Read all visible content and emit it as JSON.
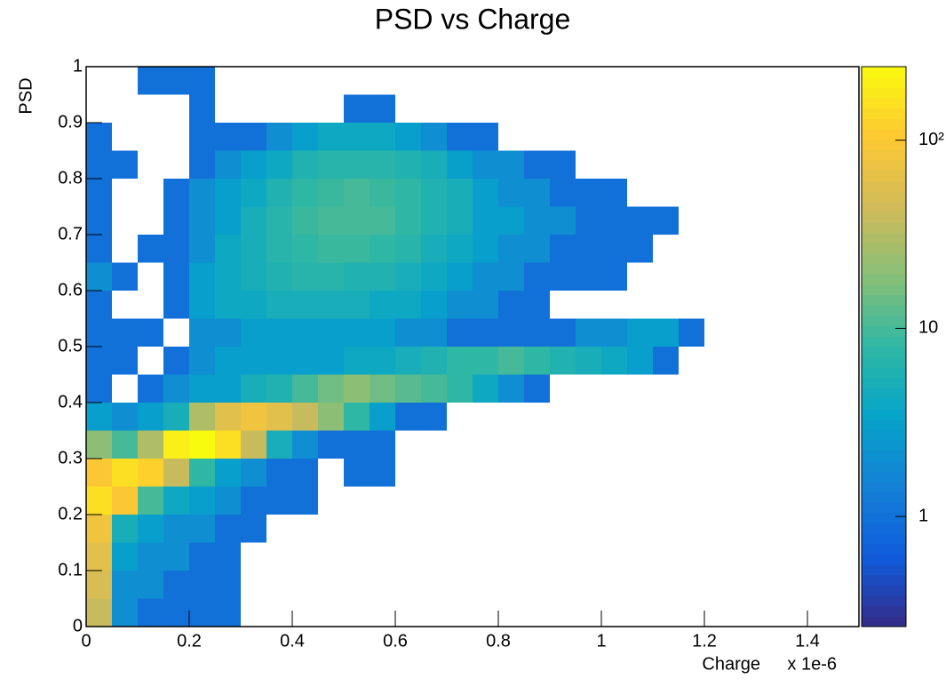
{
  "chart_data": {
    "type": "heatmap",
    "title": "PSD vs Charge",
    "x_label": "Charge",
    "x_multiplier": "x 1e-6",
    "y_label": "PSD",
    "xlim": [
      0,
      1.5
    ],
    "ylim": [
      0,
      1
    ],
    "xticks": [
      0,
      0.2,
      0.4,
      0.6,
      0.8,
      1,
      1.2,
      1.4
    ],
    "yticks": [
      0,
      0.1,
      0.2,
      0.3,
      0.4,
      0.5,
      0.6,
      0.7,
      0.8,
      0.9,
      1
    ],
    "zlim": [
      0.26,
      246
    ],
    "zlog": true,
    "zticks": [
      1,
      10,
      {
        "value": 100,
        "label": "10²"
      }
    ],
    "palette": [
      "#352a87",
      "#0f5cdd",
      "#1481d6",
      "#06a4ca",
      "#2eb7a4",
      "#87bf77",
      "#d1bb59",
      "#fec832",
      "#f9fb0e"
    ],
    "x_bins": [
      0,
      0.05,
      0.1,
      0.15,
      0.2,
      0.25,
      0.3,
      0.35,
      0.4,
      0.45,
      0.5,
      0.55,
      0.6,
      0.65,
      0.7,
      0.75,
      0.8,
      0.85,
      0.9,
      0.95,
      1,
      1.05,
      1.1,
      1.15,
      1.2,
      1.25,
      1.3,
      1.35,
      1.4,
      1.45,
      1.5
    ],
    "y_bins": [
      0,
      0.05,
      0.1,
      0.15,
      0.2,
      0.25,
      0.3,
      0.35,
      0.4,
      0.45,
      0.5,
      0.55,
      0.6,
      0.65,
      0.7,
      0.75,
      0.8,
      0.85,
      0.9,
      0.95,
      1
    ],
    "z": [
      [
        40,
        2,
        1,
        1,
        1,
        1,
        0,
        0,
        0,
        0,
        0,
        0,
        0,
        0,
        0,
        0,
        0,
        0,
        0,
        0,
        0,
        0,
        0,
        0,
        0,
        0,
        0,
        0,
        0,
        0
      ],
      [
        50,
        2,
        2,
        1,
        1,
        1,
        0,
        0,
        0,
        0,
        0,
        0,
        0,
        0,
        0,
        0,
        0,
        0,
        0,
        0,
        0,
        0,
        0,
        0,
        0,
        0,
        0,
        0,
        0,
        0
      ],
      [
        60,
        3,
        2,
        2,
        1,
        1,
        0,
        0,
        0,
        0,
        0,
        0,
        0,
        0,
        0,
        0,
        0,
        0,
        0,
        0,
        0,
        0,
        0,
        0,
        0,
        0,
        0,
        0,
        0,
        0
      ],
      [
        80,
        5,
        3,
        2,
        2,
        1,
        1,
        0,
        0,
        0,
        0,
        0,
        0,
        0,
        0,
        0,
        0,
        0,
        0,
        0,
        0,
        0,
        0,
        0,
        0,
        0,
        0,
        0,
        0,
        0
      ],
      [
        150,
        100,
        10,
        4,
        3,
        2,
        1,
        1,
        1,
        0,
        0,
        0,
        0,
        0,
        0,
        0,
        0,
        0,
        0,
        0,
        0,
        0,
        0,
        0,
        0,
        0,
        0,
        0,
        0,
        0
      ],
      [
        100,
        150,
        120,
        40,
        8,
        3,
        2,
        1,
        1,
        0,
        1,
        1,
        0,
        0,
        0,
        0,
        0,
        0,
        0,
        0,
        0,
        0,
        0,
        0,
        0,
        0,
        0,
        0,
        0,
        0
      ],
      [
        20,
        10,
        30,
        200,
        246,
        150,
        40,
        5,
        2,
        1,
        1,
        1,
        0,
        0,
        0,
        0,
        0,
        0,
        0,
        0,
        0,
        0,
        0,
        0,
        0,
        0,
        0,
        0,
        0,
        0
      ],
      [
        3,
        2,
        3,
        5,
        30,
        60,
        80,
        60,
        40,
        20,
        8,
        3,
        1,
        1,
        0,
        0,
        0,
        0,
        0,
        0,
        0,
        0,
        0,
        0,
        0,
        0,
        0,
        0,
        0,
        0
      ],
      [
        1,
        0,
        1,
        2,
        3,
        3,
        5,
        6,
        10,
        15,
        20,
        15,
        12,
        10,
        8,
        4,
        2,
        1,
        0,
        0,
        0,
        0,
        0,
        0,
        0,
        0,
        0,
        0,
        0,
        0
      ],
      [
        1,
        1,
        0,
        1,
        2,
        3,
        3,
        3,
        3,
        3,
        4,
        4,
        5,
        6,
        8,
        8,
        10,
        8,
        6,
        5,
        4,
        3,
        1,
        0,
        0,
        0,
        0,
        0,
        0,
        0
      ],
      [
        1,
        1,
        1,
        0,
        2,
        2,
        3,
        3,
        3,
        3,
        3,
        3,
        2,
        2,
        1,
        1,
        1,
        1,
        1,
        2,
        2,
        3,
        3,
        1,
        0,
        0,
        0,
        0,
        0,
        0
      ],
      [
        1,
        0,
        0,
        1,
        3,
        4,
        4,
        5,
        5,
        5,
        5,
        4,
        4,
        3,
        2,
        2,
        1,
        1,
        0,
        0,
        0,
        0,
        0,
        0,
        0,
        0,
        0,
        0,
        0,
        0
      ],
      [
        2,
        1,
        0,
        1,
        3,
        4,
        5,
        6,
        7,
        7,
        6,
        6,
        5,
        4,
        3,
        2,
        2,
        1,
        1,
        1,
        1,
        0,
        0,
        0,
        0,
        0,
        0,
        0,
        0,
        0
      ],
      [
        1,
        0,
        1,
        1,
        2,
        4,
        5,
        7,
        8,
        9,
        9,
        8,
        7,
        5,
        4,
        3,
        2,
        2,
        1,
        1,
        1,
        1,
        0,
        0,
        0,
        0,
        0,
        0,
        0,
        0
      ],
      [
        1,
        0,
        0,
        1,
        2,
        3,
        5,
        7,
        9,
        10,
        10,
        10,
        8,
        6,
        5,
        3,
        3,
        2,
        2,
        1,
        1,
        1,
        1,
        0,
        0,
        0,
        0,
        0,
        0,
        0
      ],
      [
        1,
        0,
        0,
        1,
        2,
        3,
        4,
        6,
        8,
        9,
        10,
        9,
        8,
        6,
        5,
        3,
        2,
        2,
        1,
        1,
        1,
        0,
        0,
        0,
        0,
        0,
        0,
        0,
        0,
        0
      ],
      [
        1,
        1,
        0,
        0,
        1,
        2,
        3,
        4,
        6,
        7,
        7,
        7,
        6,
        5,
        3,
        2,
        2,
        1,
        1,
        0,
        0,
        0,
        0,
        0,
        0,
        0,
        0,
        0,
        0,
        0
      ],
      [
        1,
        0,
        0,
        0,
        1,
        1,
        1,
        2,
        3,
        4,
        4,
        4,
        3,
        2,
        1,
        1,
        0,
        0,
        0,
        0,
        0,
        0,
        0,
        0,
        0,
        0,
        0,
        0,
        0,
        0
      ],
      [
        0,
        0,
        0,
        0,
        1,
        0,
        0,
        0,
        0,
        0,
        1,
        1,
        0,
        0,
        0,
        0,
        0,
        0,
        0,
        0,
        0,
        0,
        0,
        0,
        0,
        0,
        0,
        0,
        0,
        0
      ],
      [
        0,
        0,
        1,
        1,
        1,
        0,
        0,
        0,
        0,
        0,
        0,
        0,
        0,
        0,
        0,
        0,
        0,
        0,
        0,
        0,
        0,
        0,
        0,
        0,
        0,
        0,
        0,
        0,
        0,
        0
      ]
    ]
  }
}
